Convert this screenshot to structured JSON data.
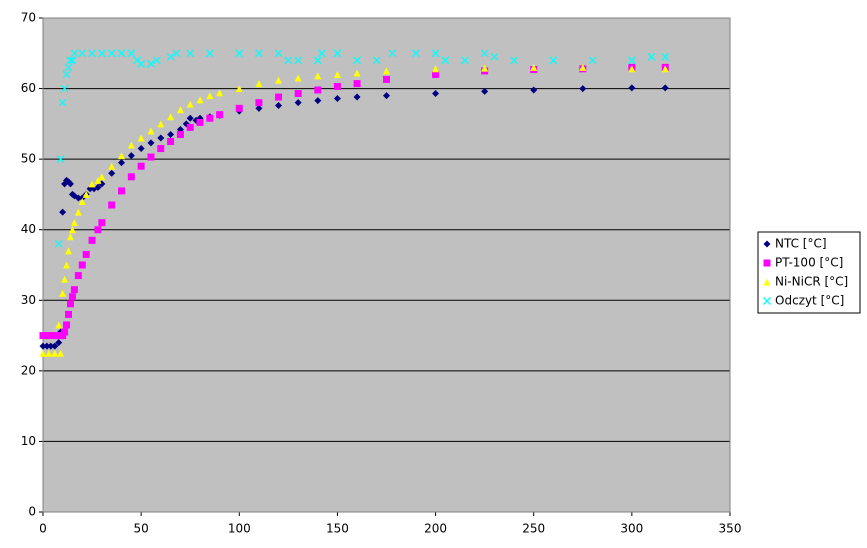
{
  "chart_data": {
    "type": "scatter",
    "xlim": [
      0,
      350
    ],
    "xticks": [
      0,
      50,
      100,
      150,
      200,
      250,
      300,
      350
    ],
    "ylim": [
      0,
      70
    ],
    "yticks": [
      0,
      10,
      20,
      30,
      40,
      50,
      60,
      70
    ],
    "grid": true,
    "legend": "right",
    "series": [
      {
        "name": "NTC [°C]",
        "color": "#000080",
        "marker": "diamond",
        "x": [
          0,
          2,
          4,
          6,
          8,
          9,
          10,
          11,
          12,
          13,
          14,
          15,
          16,
          18,
          20,
          22,
          24,
          26,
          28,
          30,
          35,
          40,
          45,
          50,
          55,
          60,
          65,
          70,
          73,
          75,
          78,
          80,
          85,
          90,
          100,
          110,
          120,
          130,
          140,
          150,
          160,
          175,
          200,
          225,
          250,
          275,
          300,
          317
        ],
        "values": [
          23.5,
          23.5,
          23.5,
          23.5,
          24,
          25.5,
          42.5,
          46.5,
          47,
          46.8,
          46.5,
          45,
          44.8,
          44.5,
          44.5,
          45,
          45.8,
          45.8,
          46,
          46.5,
          48,
          49.5,
          50.5,
          51.5,
          52.3,
          53,
          53.5,
          54.2,
          55,
          55.8,
          55.5,
          55.8,
          56,
          56.2,
          56.8,
          57.2,
          57.6,
          58,
          58.3,
          58.6,
          58.8,
          59,
          59.3,
          59.6,
          59.8,
          60,
          60.1,
          60.1
        ]
      },
      {
        "name": "PT-100 [°C]",
        "color": "#ff00ff",
        "marker": "square",
        "x": [
          0,
          3,
          6,
          9,
          10,
          11,
          12,
          13,
          14,
          15,
          16,
          18,
          20,
          22,
          25,
          28,
          30,
          35,
          40,
          45,
          50,
          55,
          60,
          65,
          70,
          75,
          80,
          85,
          90,
          100,
          110,
          120,
          130,
          140,
          150,
          160,
          175,
          200,
          225,
          250,
          275,
          300,
          317
        ],
        "values": [
          25,
          25,
          25,
          25,
          25,
          25.5,
          26.5,
          28,
          29.5,
          30.5,
          31.5,
          33.5,
          35,
          36.5,
          38.5,
          40,
          41,
          43.5,
          45.5,
          47.5,
          49,
          50.3,
          51.5,
          52.5,
          53.5,
          54.5,
          55.2,
          55.8,
          56.3,
          57.2,
          58,
          58.8,
          59.3,
          59.8,
          60.3,
          60.7,
          61.3,
          62,
          62.5,
          62.7,
          62.8,
          63,
          63
        ]
      },
      {
        "name": "Ni-NiCR [°C]",
        "color": "#ffff00",
        "marker": "triangle",
        "x": [
          0,
          3,
          6,
          8,
          9,
          10,
          11,
          12,
          13,
          14,
          15,
          16,
          18,
          20,
          22,
          25,
          28,
          30,
          35,
          40,
          45,
          50,
          55,
          60,
          65,
          70,
          75,
          80,
          85,
          90,
          100,
          110,
          120,
          130,
          140,
          150,
          160,
          175,
          200,
          225,
          250,
          275,
          300,
          317
        ],
        "values": [
          22.5,
          22.5,
          22.5,
          26.5,
          22.5,
          31,
          33,
          35,
          37,
          39,
          40,
          41,
          42.5,
          44,
          45,
          46.5,
          47,
          47.5,
          49,
          50.5,
          52,
          53,
          54,
          55,
          56,
          57,
          57.8,
          58.4,
          59,
          59.4,
          60,
          60.7,
          61.2,
          61.5,
          61.8,
          62,
          62.2,
          62.5,
          62.8,
          62.9,
          63,
          63,
          62.8,
          62.8
        ]
      },
      {
        "name": "Odczyt [°C]",
        "color": "#00ffff",
        "marker": "x",
        "x": [
          8,
          9,
          10,
          11,
          12,
          13,
          14,
          15,
          16,
          20,
          25,
          30,
          35,
          40,
          45,
          48,
          50,
          55,
          58,
          65,
          68,
          75,
          85,
          100,
          110,
          120,
          125,
          130,
          140,
          142,
          150,
          160,
          170,
          178,
          190,
          200,
          205,
          215,
          225,
          230,
          240,
          260,
          280,
          300,
          310,
          317
        ],
        "values": [
          38,
          50,
          58,
          60,
          62,
          63,
          64,
          64,
          65,
          65,
          65,
          65,
          65,
          65,
          65,
          64,
          63.5,
          63.5,
          64,
          64.5,
          65,
          65,
          65,
          65,
          65,
          65,
          64,
          64,
          64,
          65,
          65,
          64,
          64,
          65,
          65,
          65,
          64,
          64,
          65,
          64.5,
          64,
          64,
          64,
          64,
          64.5,
          64.5
        ]
      }
    ]
  }
}
